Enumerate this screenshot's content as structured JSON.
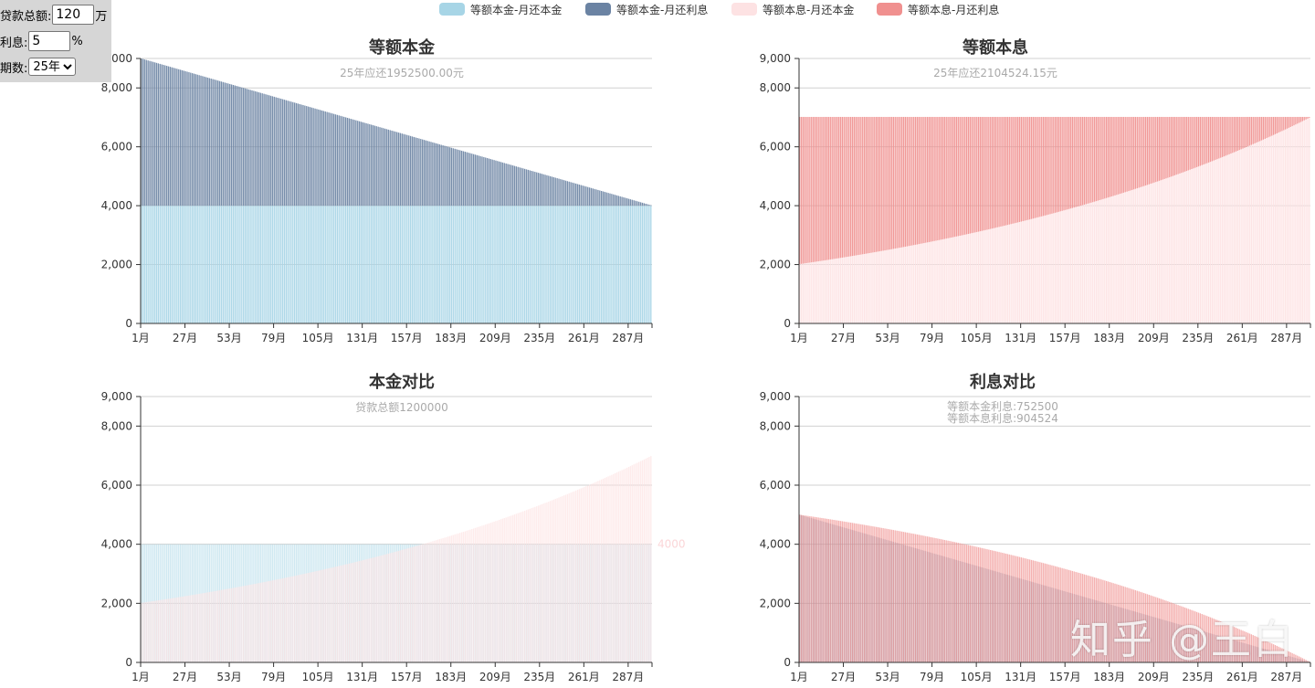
{
  "form": {
    "loan_label": "贷款总额:",
    "loan_value": "120",
    "loan_unit": "万",
    "rate_label": "利息:",
    "rate_value": "5",
    "rate_unit": "%",
    "term_label": "期数:",
    "term_selected": "25年"
  },
  "legend": [
    {
      "label": "等额本金-月还本金",
      "color": "#a7d5e6"
    },
    {
      "label": "等额本金-月还利息",
      "color": "#6b83a3"
    },
    {
      "label": "等额本息-月还本金",
      "color": "#fde2e3"
    },
    {
      "label": "等额本息-月还利息",
      "color": "#f0908f"
    }
  ],
  "watermark": "知乎 @王白",
  "chart_data": [
    {
      "type": "bar",
      "title": "等额本金",
      "subtitle": [
        "25年应还1952500.00元"
      ],
      "x_ticks": [
        "1月",
        "27月",
        "53月",
        "79月",
        "105月",
        "131月",
        "157月",
        "183月",
        "209月",
        "235月",
        "261月",
        "287月"
      ],
      "y_ticks": [
        "0",
        "2,000",
        "4,000",
        "6,000",
        "8,000",
        "9,000"
      ],
      "ylim": [
        0,
        9000
      ],
      "months": 300,
      "stacked": true,
      "series": [
        {
          "name": "等额本金-月还本金",
          "start": 4000,
          "end": 4000,
          "color": "#a7d5e6"
        },
        {
          "name": "等额本金-月还利息",
          "start": 5000,
          "end": 16.67,
          "color": "#6b83a3"
        }
      ]
    },
    {
      "type": "bar",
      "title": "等额本息",
      "subtitle": [
        "25年应还2104524.15元"
      ],
      "x_ticks": [
        "1月",
        "27月",
        "53月",
        "79月",
        "105月",
        "131月",
        "157月",
        "183月",
        "209月",
        "235月",
        "261月",
        "287月"
      ],
      "y_ticks": [
        "0",
        "2,000",
        "4,000",
        "6,000",
        "8,000",
        "9,000"
      ],
      "ylim": [
        0,
        9000
      ],
      "months": 300,
      "stacked": true,
      "monthly_payment": 7015.08,
      "series": [
        {
          "name": "等额本息-月还本金",
          "start": 2015.08,
          "end": 6986,
          "color": "#fde2e3"
        },
        {
          "name": "等额本息-月还利息",
          "start": 5000,
          "end": 29.11,
          "color": "#f0908f"
        }
      ]
    },
    {
      "type": "bar",
      "title": "本金对比",
      "subtitle": [
        "贷款总额1200000"
      ],
      "x_ticks": [
        "1月",
        "27月",
        "53月",
        "79月",
        "105月",
        "131月",
        "157月",
        "183月",
        "209月",
        "235月",
        "261月",
        "287月"
      ],
      "y_ticks": [
        "0",
        "2,000",
        "4,000",
        "6,000",
        "8,000",
        "9,000"
      ],
      "ylim": [
        0,
        9000
      ],
      "months": 300,
      "stacked": false,
      "data_label": "4000",
      "series": [
        {
          "name": "等额本金-月还本金",
          "start": 4000,
          "end": 4000,
          "color": "#a7d5e6"
        },
        {
          "name": "等额本息-月还本金",
          "start": 2015.08,
          "end": 6986,
          "color": "#fde2e3"
        }
      ]
    },
    {
      "type": "bar",
      "title": "利息对比",
      "subtitle": [
        "等额本金利息:752500",
        "等额本息利息:904524"
      ],
      "x_ticks": [
        "1月",
        "27月",
        "53月",
        "79月",
        "105月",
        "131月",
        "157月",
        "183月",
        "209月",
        "235月",
        "261月",
        "287月"
      ],
      "y_ticks": [
        "0",
        "2,000",
        "4,000",
        "6,000",
        "8,000",
        "9,000"
      ],
      "ylim": [
        0,
        9000
      ],
      "months": 300,
      "stacked": false,
      "series": [
        {
          "name": "等额本金-月还利息",
          "start": 5000,
          "end": 16.67,
          "color": "#6b83a3"
        },
        {
          "name": "等额本息-月还利息",
          "start": 5000,
          "end": 29.11,
          "color": "#f0908f"
        }
      ]
    }
  ]
}
